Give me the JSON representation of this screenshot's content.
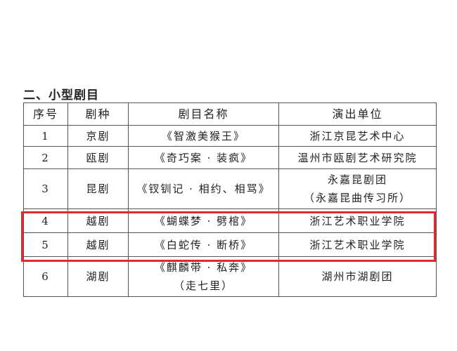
{
  "heading": "二、小型剧目",
  "table": {
    "headers": [
      "序号",
      "剧种",
      "剧目名称",
      "演出单位"
    ],
    "rows": [
      {
        "no": "1",
        "genre": "京剧",
        "title": [
          "《智激美猴王》"
        ],
        "unit": [
          "浙江京昆艺术中心"
        ]
      },
      {
        "no": "2",
        "genre": "瓯剧",
        "title": [
          "《奇巧案 · 装疯》"
        ],
        "unit": [
          "温州市瓯剧艺术研究院"
        ]
      },
      {
        "no": "3",
        "genre": "昆剧",
        "title": [
          "《钗钏记 · 相约、相骂》"
        ],
        "unit": [
          "永嘉昆剧团",
          "（永嘉昆曲传习所）"
        ]
      },
      {
        "no": "4",
        "genre": "越剧",
        "title": [
          "《蝴蝶梦 · 劈棺》"
        ],
        "unit": [
          "浙江艺术职业学院"
        ]
      },
      {
        "no": "5",
        "genre": "越剧",
        "title": [
          "《白蛇传 · 断桥》"
        ],
        "unit": [
          "浙江艺术职业学院"
        ]
      },
      {
        "no": "6",
        "genre": "湖剧",
        "title": [
          "《麒麟带 · 私奔》",
          "（走七里）"
        ],
        "unit": [
          "湖州市湖剧团"
        ]
      }
    ]
  },
  "highlight": {
    "rows": [
      "4",
      "5"
    ],
    "color": "#e8262f"
  }
}
